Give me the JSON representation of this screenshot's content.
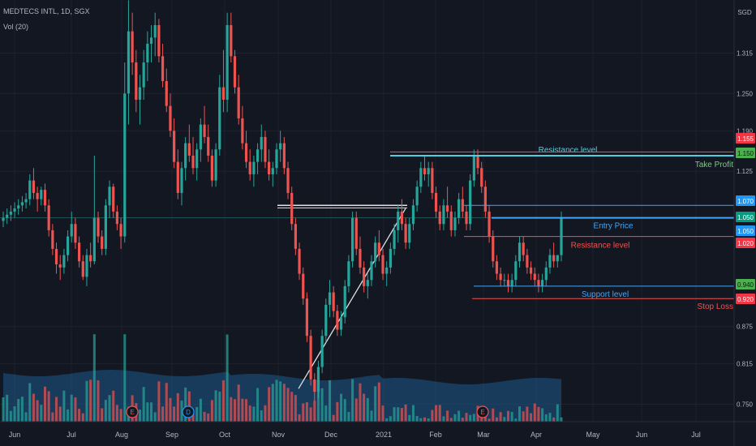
{
  "header": {
    "symbol_line": "MEDTECS INTL, 1D, SGX",
    "volume_line": "Vol (20)",
    "currency": "SGD"
  },
  "chart_data": {
    "type": "candlestick",
    "title": "MEDTECS INTL, 1D, SGX",
    "y_axis": {
      "unit": "SGD",
      "ticks": [
        1.315,
        1.25,
        1.19,
        1.125,
        1.05,
        0.875,
        0.815,
        0.75
      ],
      "range": [
        0.735,
        1.39
      ]
    },
    "x_axis": {
      "labels": [
        "Jun",
        "Jul",
        "Aug",
        "Sep",
        "Oct",
        "Nov",
        "Dec",
        "2021",
        "Feb",
        "Mar",
        "Apr",
        "May",
        "Jun",
        "Jul"
      ]
    },
    "price_tags": [
      {
        "value": "1.155",
        "color": "#f23645"
      },
      {
        "value": "1.150",
        "color": "#4caf50"
      },
      {
        "value": "1.070",
        "color": "#2196f3"
      },
      {
        "value": "1.050",
        "color": "#089981"
      },
      {
        "value": "1.050",
        "color": "#2196f3"
      },
      {
        "value": "1.020",
        "color": "#f23645"
      },
      {
        "value": "0.940",
        "color": "#4caf50"
      },
      {
        "value": "0.920",
        "color": "#f23645"
      }
    ],
    "levels": [
      {
        "label": "Resistance level",
        "price": 1.15,
        "color": "#4dd0e1"
      },
      {
        "label": "Take Profit",
        "price": 1.15,
        "color": "#81c784"
      },
      {
        "label": "Entry Price",
        "price": 1.05,
        "color": "#42a5f5"
      },
      {
        "label": "Resistance level",
        "price": 1.02,
        "color": "#ef5350"
      },
      {
        "label": "Support level",
        "price": 0.94,
        "color": "#42a5f5"
      },
      {
        "label": "Stop Loss",
        "price": 0.92,
        "color": "#ef5350"
      }
    ],
    "event_markers": [
      {
        "label": "E"
      },
      {
        "label": "D"
      },
      {
        "label": "E"
      }
    ],
    "candles": [
      [
        1.045,
        1.06,
        1.035,
        1.05
      ],
      [
        1.05,
        1.065,
        1.04,
        1.055
      ],
      [
        1.055,
        1.07,
        1.045,
        1.06
      ],
      [
        1.06,
        1.075,
        1.05,
        1.065
      ],
      [
        1.065,
        1.08,
        1.055,
        1.07
      ],
      [
        1.07,
        1.085,
        1.06,
        1.075
      ],
      [
        1.075,
        1.09,
        1.065,
        1.08
      ],
      [
        1.08,
        1.12,
        1.07,
        1.11
      ],
      [
        1.11,
        1.13,
        1.08,
        1.09
      ],
      [
        1.09,
        1.1,
        1.06,
        1.08
      ],
      [
        1.08,
        1.1,
        1.07,
        1.095
      ],
      [
        1.095,
        1.105,
        1.06,
        1.07
      ],
      [
        1.07,
        1.08,
        1.02,
        1.03
      ],
      [
        1.03,
        1.04,
        0.99,
        1.0
      ],
      [
        1.0,
        1.01,
        0.96,
        0.975
      ],
      [
        0.975,
        0.99,
        0.95,
        0.97
      ],
      [
        0.97,
        1.0,
        0.96,
        0.99
      ],
      [
        0.99,
        1.03,
        0.98,
        1.02
      ],
      [
        1.02,
        1.06,
        1.01,
        1.04
      ],
      [
        1.04,
        1.05,
        1.0,
        1.01
      ],
      [
        1.01,
        1.02,
        0.97,
        0.98
      ],
      [
        0.98,
        0.99,
        0.95,
        0.955
      ],
      [
        0.955,
        1.0,
        0.94,
        0.99
      ],
      [
        0.99,
        1.01,
        0.97,
        0.98
      ],
      [
        0.98,
        1.15,
        0.975,
        1.05
      ],
      [
        1.05,
        1.06,
        1.01,
        1.02
      ],
      [
        1.02,
        1.03,
        0.99,
        1.0
      ],
      [
        1.0,
        1.08,
        0.99,
        1.07
      ],
      [
        1.07,
        1.11,
        1.05,
        1.1
      ],
      [
        1.1,
        1.105,
        1.05,
        1.06
      ],
      [
        1.06,
        1.07,
        1.03,
        1.04
      ],
      [
        1.04,
        1.05,
        1.0,
        1.02
      ],
      [
        1.02,
        1.3,
        1.01,
        1.25
      ],
      [
        1.25,
        1.4,
        1.2,
        1.35
      ],
      [
        1.35,
        1.38,
        1.28,
        1.3
      ],
      [
        1.3,
        1.32,
        1.22,
        1.24
      ],
      [
        1.24,
        1.28,
        1.2,
        1.26
      ],
      [
        1.26,
        1.32,
        1.24,
        1.3
      ],
      [
        1.3,
        1.35,
        1.27,
        1.33
      ],
      [
        1.33,
        1.36,
        1.3,
        1.34
      ],
      [
        1.34,
        1.38,
        1.31,
        1.36
      ],
      [
        1.36,
        1.37,
        1.3,
        1.31
      ],
      [
        1.31,
        1.33,
        1.26,
        1.27
      ],
      [
        1.27,
        1.29,
        1.22,
        1.23
      ],
      [
        1.23,
        1.25,
        1.18,
        1.19
      ],
      [
        1.19,
        1.21,
        1.13,
        1.14
      ],
      [
        1.14,
        1.16,
        1.08,
        1.09
      ],
      [
        1.09,
        1.14,
        1.07,
        1.13
      ],
      [
        1.13,
        1.18,
        1.11,
        1.17
      ],
      [
        1.17,
        1.2,
        1.14,
        1.15
      ],
      [
        1.15,
        1.18,
        1.12,
        1.13
      ],
      [
        1.13,
        1.17,
        1.11,
        1.16
      ],
      [
        1.16,
        1.21,
        1.14,
        1.2
      ],
      [
        1.2,
        1.23,
        1.17,
        1.18
      ],
      [
        1.18,
        1.2,
        1.14,
        1.15
      ],
      [
        1.15,
        1.16,
        1.1,
        1.11
      ],
      [
        1.11,
        1.17,
        1.1,
        1.16
      ],
      [
        1.16,
        1.28,
        1.15,
        1.26
      ],
      [
        1.26,
        1.32,
        1.22,
        1.24
      ],
      [
        1.24,
        1.38,
        1.22,
        1.36
      ],
      [
        1.36,
        1.38,
        1.3,
        1.31
      ],
      [
        1.31,
        1.32,
        1.25,
        1.26
      ],
      [
        1.26,
        1.28,
        1.2,
        1.21
      ],
      [
        1.21,
        1.23,
        1.16,
        1.17
      ],
      [
        1.17,
        1.19,
        1.13,
        1.14
      ],
      [
        1.14,
        1.16,
        1.11,
        1.12
      ],
      [
        1.12,
        1.15,
        1.1,
        1.14
      ],
      [
        1.14,
        1.17,
        1.12,
        1.16
      ],
      [
        1.16,
        1.2,
        1.14,
        1.18
      ],
      [
        1.18,
        1.19,
        1.13,
        1.14
      ],
      [
        1.14,
        1.16,
        1.11,
        1.12
      ],
      [
        1.12,
        1.14,
        1.1,
        1.13
      ],
      [
        1.13,
        1.17,
        1.12,
        1.16
      ],
      [
        1.16,
        1.19,
        1.14,
        1.17
      ],
      [
        1.17,
        1.18,
        1.12,
        1.13
      ],
      [
        1.13,
        1.14,
        1.08,
        1.09
      ],
      [
        1.09,
        1.1,
        1.03,
        1.04
      ],
      [
        1.04,
        1.05,
        0.99,
        1.0
      ],
      [
        1.0,
        1.01,
        0.95,
        0.96
      ],
      [
        0.96,
        0.97,
        0.91,
        0.92
      ],
      [
        0.92,
        0.93,
        0.85,
        0.86
      ],
      [
        0.86,
        0.87,
        0.78,
        0.79
      ],
      [
        0.79,
        0.8,
        0.755,
        0.77
      ],
      [
        0.77,
        0.82,
        0.76,
        0.81
      ],
      [
        0.81,
        0.87,
        0.8,
        0.86
      ],
      [
        0.86,
        0.92,
        0.85,
        0.91
      ],
      [
        0.91,
        0.95,
        0.89,
        0.93
      ],
      [
        0.93,
        0.94,
        0.89,
        0.9
      ],
      [
        0.9,
        0.91,
        0.86,
        0.87
      ],
      [
        0.87,
        0.9,
        0.86,
        0.89
      ],
      [
        0.89,
        0.95,
        0.88,
        0.94
      ],
      [
        0.94,
        0.99,
        0.93,
        0.98
      ],
      [
        0.98,
        1.06,
        0.97,
        1.05
      ],
      [
        1.05,
        1.06,
        0.99,
        1.0
      ],
      [
        1.0,
        1.02,
        0.96,
        0.97
      ],
      [
        0.97,
        0.98,
        0.93,
        0.94
      ],
      [
        0.94,
        0.96,
        0.92,
        0.95
      ],
      [
        0.95,
        0.99,
        0.94,
        0.98
      ],
      [
        0.98,
        1.02,
        0.97,
        1.01
      ],
      [
        1.01,
        1.03,
        0.98,
        0.99
      ],
      [
        0.99,
        1.0,
        0.95,
        0.96
      ],
      [
        0.96,
        0.98,
        0.94,
        0.97
      ],
      [
        0.97,
        1.01,
        0.96,
        1.0
      ],
      [
        1.0,
        1.04,
        0.99,
        1.03
      ],
      [
        1.03,
        1.07,
        1.01,
        1.06
      ],
      [
        1.06,
        1.08,
        1.03,
        1.04
      ],
      [
        1.04,
        1.05,
        1.0,
        1.01
      ],
      [
        1.01,
        1.05,
        1.0,
        1.04
      ],
      [
        1.04,
        1.08,
        1.03,
        1.07
      ],
      [
        1.07,
        1.11,
        1.06,
        1.1
      ],
      [
        1.1,
        1.14,
        1.09,
        1.13
      ],
      [
        1.13,
        1.15,
        1.11,
        1.12
      ],
      [
        1.12,
        1.14,
        1.1,
        1.13
      ],
      [
        1.13,
        1.14,
        1.08,
        1.09
      ],
      [
        1.09,
        1.1,
        1.05,
        1.06
      ],
      [
        1.06,
        1.07,
        1.03,
        1.04
      ],
      [
        1.04,
        1.08,
        1.03,
        1.07
      ],
      [
        1.07,
        1.1,
        1.05,
        1.06
      ],
      [
        1.06,
        1.07,
        1.02,
        1.03
      ],
      [
        1.03,
        1.06,
        1.02,
        1.05
      ],
      [
        1.05,
        1.09,
        1.04,
        1.08
      ],
      [
        1.08,
        1.1,
        1.05,
        1.06
      ],
      [
        1.06,
        1.07,
        1.03,
        1.04
      ],
      [
        1.04,
        1.12,
        1.03,
        1.11
      ],
      [
        1.11,
        1.16,
        1.1,
        1.15
      ],
      [
        1.15,
        1.16,
        1.12,
        1.13
      ],
      [
        1.13,
        1.14,
        1.09,
        1.1
      ],
      [
        1.1,
        1.11,
        1.05,
        1.06
      ],
      [
        1.06,
        1.07,
        1.01,
        1.02
      ],
      [
        1.02,
        1.03,
        0.97,
        0.98
      ],
      [
        0.98,
        0.99,
        0.95,
        0.96
      ],
      [
        0.96,
        0.97,
        0.94,
        0.95
      ],
      [
        0.95,
        0.96,
        0.94,
        0.95
      ],
      [
        0.95,
        0.96,
        0.93,
        0.94
      ],
      [
        0.94,
        0.96,
        0.93,
        0.95
      ],
      [
        0.95,
        0.99,
        0.94,
        0.98
      ],
      [
        0.98,
        1.02,
        0.97,
        1.01
      ],
      [
        1.01,
        1.02,
        0.98,
        0.99
      ],
      [
        0.99,
        1.0,
        0.96,
        0.97
      ],
      [
        0.97,
        0.98,
        0.95,
        0.96
      ],
      [
        0.96,
        0.97,
        0.94,
        0.95
      ],
      [
        0.95,
        0.96,
        0.93,
        0.94
      ],
      [
        0.94,
        0.96,
        0.93,
        0.95
      ],
      [
        0.95,
        0.98,
        0.94,
        0.97
      ],
      [
        0.97,
        1.0,
        0.96,
        0.99
      ],
      [
        0.99,
        1.01,
        0.97,
        0.98
      ],
      [
        0.98,
        0.99,
        0.97,
        0.99
      ],
      [
        0.99,
        1.06,
        0.98,
        1.05
      ]
    ]
  }
}
